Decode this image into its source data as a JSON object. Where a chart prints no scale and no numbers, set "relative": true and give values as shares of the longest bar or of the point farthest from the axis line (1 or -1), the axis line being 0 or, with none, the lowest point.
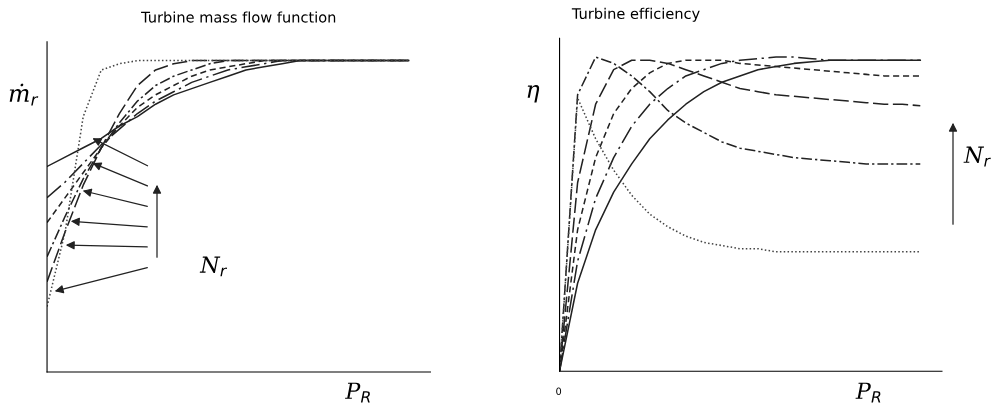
{
  "chart_data": [
    {
      "type": "line",
      "title": "Turbine mass flow function",
      "xlabel": "P$_{R}$",
      "ylabel": "ṁ$_{r}$",
      "relative": true,
      "grid": false,
      "legend": false,
      "categories": [
        null,
        null,
        null,
        null,
        null,
        null,
        null,
        null,
        null,
        null,
        null,
        null,
        null,
        null,
        null,
        null,
        null,
        null,
        null,
        null,
        null
      ],
      "series": [
        {
          "color": "#222222",
          "line_style": "solid",
          "values": [
            0.66,
            0.69,
            0.72,
            0.75,
            0.79,
            0.82,
            0.86,
            0.89,
            0.91,
            0.93,
            0.95,
            0.97,
            0.98,
            0.99,
            1,
            1,
            1,
            1,
            1,
            1,
            1
          ]
        },
        {
          "color": "#222222",
          "line_style": "longdashdot",
          "values": [
            0.56,
            0.61,
            0.67,
            0.73,
            0.78,
            0.83,
            0.87,
            0.9,
            0.93,
            0.95,
            0.97,
            0.98,
            0.99,
            1,
            1,
            1,
            1,
            1,
            1,
            1,
            1
          ]
        },
        {
          "color": "#222222",
          "line_style": "dashed",
          "values": [
            0.48,
            0.56,
            0.64,
            0.72,
            0.79,
            0.85,
            0.89,
            0.92,
            0.95,
            0.97,
            0.98,
            0.99,
            1,
            1,
            1,
            1,
            1,
            1,
            1,
            1,
            1
          ]
        },
        {
          "color": "#222222",
          "line_style": "dashdot",
          "values": [
            0.37,
            0.5,
            0.62,
            0.72,
            0.8,
            0.87,
            0.92,
            0.95,
            0.97,
            0.99,
            1,
            1,
            1,
            1,
            1,
            1,
            1,
            1,
            1,
            1,
            1
          ]
        },
        {
          "color": "#222222",
          "line_style": "longdash",
          "values": [
            0.29,
            0.45,
            0.6,
            0.72,
            0.83,
            0.92,
            0.97,
            0.99,
            1,
            1,
            1,
            1,
            1,
            1,
            1,
            1,
            1,
            1,
            1,
            1,
            1
          ]
        },
        {
          "color": "#444444",
          "line_style": "dotted",
          "values": [
            0.21,
            0.45,
            0.82,
            0.97,
            0.99,
            1,
            1,
            1,
            1,
            1,
            1,
            1,
            1,
            1,
            1,
            1,
            1,
            1,
            1,
            1,
            1
          ]
        }
      ],
      "annotations": [
        "N$_{r}$"
      ]
    },
    {
      "type": "line",
      "title": "Turbine efficiency",
      "xlabel": "P$_{R}$",
      "ylabel": "η",
      "relative": true,
      "grid": false,
      "legend": false,
      "categories": [
        null,
        null,
        null,
        null,
        null,
        null,
        null,
        null,
        null,
        null,
        null,
        null,
        null,
        null,
        null,
        null,
        null,
        null,
        null,
        null,
        null
      ],
      "series": [
        {
          "color": "#222222",
          "line_style": "solid",
          "values": [
            0,
            0.28,
            0.45,
            0.57,
            0.66,
            0.74,
            0.8,
            0.85,
            0.89,
            0.92,
            0.94,
            0.96,
            0.97,
            0.98,
            0.985,
            0.99,
            0.99,
            0.99,
            0.99,
            0.99,
            0.99
          ]
        },
        {
          "color": "#222222",
          "line_style": "longdashdot",
          "values": [
            0,
            0.35,
            0.55,
            0.68,
            0.78,
            0.85,
            0.9,
            0.94,
            0.96,
            0.98,
            0.99,
            0.995,
            1,
            1,
            0.995,
            0.99,
            0.99,
            0.99,
            0.99,
            0.99,
            0.99
          ]
        },
        {
          "color": "#222222",
          "line_style": "dashed",
          "values": [
            0,
            0.45,
            0.68,
            0.82,
            0.9,
            0.95,
            0.98,
            0.99,
            0.99,
            0.99,
            0.98,
            0.975,
            0.97,
            0.965,
            0.96,
            0.955,
            0.95,
            0.945,
            0.94,
            0.94,
            0.94
          ]
        },
        {
          "color": "#222222",
          "line_style": "longdash",
          "values": [
            0,
            0.6,
            0.85,
            0.96,
            0.99,
            0.99,
            0.98,
            0.96,
            0.94,
            0.92,
            0.9,
            0.89,
            0.88,
            0.875,
            0.87,
            0.865,
            0.86,
            0.855,
            0.85,
            0.85,
            0.845
          ]
        },
        {
          "color": "#222222",
          "line_style": "dashdot",
          "values": [
            0,
            0.88,
            1,
            0.98,
            0.94,
            0.89,
            0.83,
            0.79,
            0.76,
            0.73,
            0.71,
            0.7,
            0.69,
            0.68,
            0.675,
            0.67,
            0.665,
            0.66,
            0.66,
            0.66,
            0.66
          ]
        },
        {
          "color": "#444444",
          "line_style": "dotted",
          "values": [
            0,
            0.87,
            0.74,
            0.64,
            0.56,
            0.5,
            0.46,
            0.43,
            0.41,
            0.4,
            0.39,
            0.39,
            0.38,
            0.38,
            0.38,
            0.38,
            0.38,
            0.38,
            0.38,
            0.38,
            0.38
          ]
        }
      ],
      "annotations": [
        "0",
        "N$_{r}$"
      ]
    }
  ]
}
